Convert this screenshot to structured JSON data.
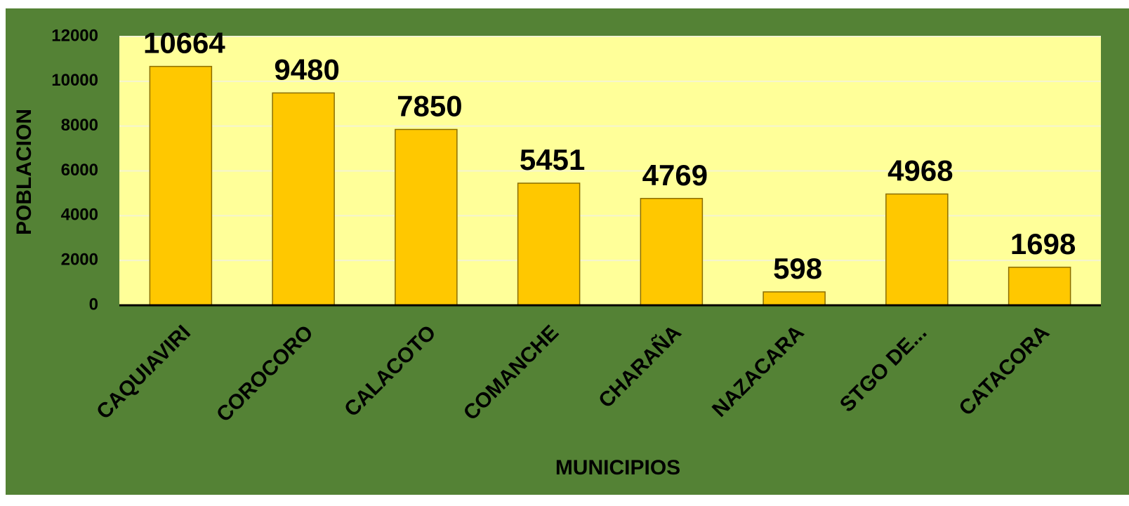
{
  "chart_data": {
    "type": "bar",
    "x_label": "MUNICIPIOS",
    "y_label": "POBLACION",
    "categories": [
      "CAQUIAVIRI",
      "COROCORO",
      "CALACOTO",
      "COMANCHE",
      "CHARAÑA",
      "NAZACARA",
      "STGO DE...",
      "CATACORA"
    ],
    "values": [
      10664,
      9480,
      7850,
      5451,
      4769,
      598,
      4968,
      1698
    ],
    "color": "#ffc800",
    "ylim": [
      0,
      12000
    ],
    "yticks": [
      0,
      2000,
      4000,
      6000,
      8000,
      10000,
      12000
    ],
    "grid": true
  }
}
